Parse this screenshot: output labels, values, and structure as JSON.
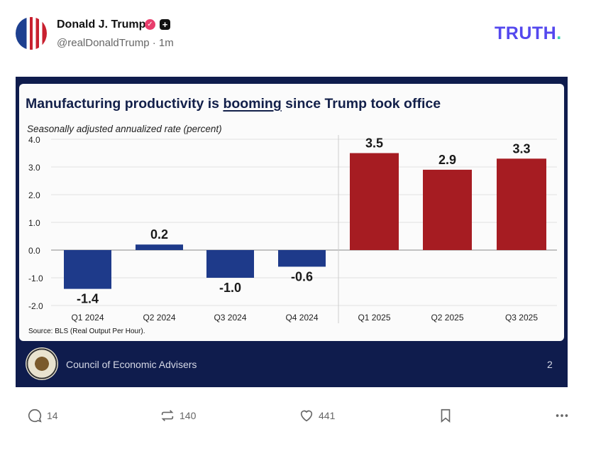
{
  "post": {
    "author_name": "Donald J. Trump",
    "verified_icon": "verified-badge-icon",
    "handle": "@realDonaldTrump",
    "time": "1m",
    "brand": "TRUTH",
    "brand_dot": "."
  },
  "chart_card": {
    "title_pre": "Manufacturing productivity is ",
    "title_emph": "booming",
    "title_post": " since Trump took office",
    "subtitle": "Seasonally adjusted annualized rate (percent)",
    "source": "Source: BLS (Real Output Per Hour).",
    "footer_org": "Council of Economic Advisers",
    "page_number": "2"
  },
  "chart_data": {
    "type": "bar",
    "title": "Manufacturing productivity is booming since Trump took office",
    "ylabel": "Seasonally adjusted annualized rate (percent)",
    "categories": [
      "Q1 2024",
      "Q2 2024",
      "Q3 2024",
      "Q4 2024",
      "Q1 2025",
      "Q2 2025",
      "Q3 2025"
    ],
    "values": [
      -1.4,
      0.2,
      -1.0,
      -0.6,
      3.5,
      2.9,
      3.3
    ],
    "data_labels": [
      "-1.4",
      "0.2",
      "-1.0",
      "-0.6",
      "3.5",
      "2.9",
      "3.3"
    ],
    "ylim": [
      -2.0,
      4.0
    ],
    "yticks": [
      "4.0",
      "3.0",
      "2.0",
      "1.0",
      "0.0",
      "-1.0",
      "-2.0"
    ],
    "grid": true,
    "colors": {
      "2024": "#1e3a8a",
      "2025": "#a61c22"
    }
  },
  "actions": {
    "replies": "14",
    "retruths": "140",
    "likes": "441"
  }
}
